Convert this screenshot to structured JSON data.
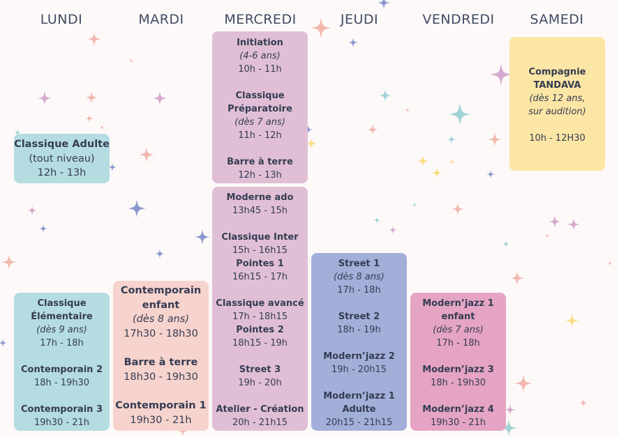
{
  "days": [
    "LUNDI",
    "MARDI",
    "MERCREDI",
    "JEUDI",
    "VENDREDI",
    "SAMEDI"
  ],
  "lundi_top": {
    "title": "Classique Adulte",
    "level": "(tout niveau)",
    "time": "12h - 13h"
  },
  "lundi_bottom": {
    "c1": {
      "title1": "Classique",
      "title2": "Élémentaire",
      "age": "(dès 9 ans)",
      "time": "17h - 18h"
    },
    "c2": {
      "title": "Contemporain 2",
      "time": "18h - 19h30"
    },
    "c3": {
      "title": "Contemporain 3",
      "time": "19h30 - 21h"
    }
  },
  "mardi": {
    "c1": {
      "title1": "Contemporain",
      "title2": "enfant",
      "age": "(dès 8 ans)",
      "time": "17h30 - 18h30"
    },
    "c2": {
      "title": "Barre à terre",
      "time": "18h30 - 19h30"
    },
    "c3": {
      "title": "Contemporain 1",
      "time": "19h30 - 21h"
    }
  },
  "mercredi_top": {
    "c1": {
      "title": "Initiation",
      "age": "(4-6 ans)",
      "time": "10h - 11h"
    },
    "c2": {
      "title1": "Classique",
      "title2": "Préparatoire",
      "age": "(dès 7 ans)",
      "time": "11h - 12h"
    },
    "c3": {
      "title": "Barre à terre",
      "time": "12h - 13h"
    }
  },
  "mercredi_bottom": {
    "c1": {
      "title": "Moderne ado",
      "time": "13h45 - 15h"
    },
    "c2": {
      "title": "Classique Inter",
      "time": "15h - 16h15"
    },
    "c3": {
      "title": "Pointes 1",
      "time": "16h15 - 17h"
    },
    "c4": {
      "title": "Classique avancé",
      "time": "17h - 18h15"
    },
    "c5": {
      "title": "Pointes 2",
      "time": "18h15 - 19h"
    },
    "c6": {
      "title": "Street 3",
      "time": "19h - 20h"
    },
    "c7": {
      "title": "Atelier - Création",
      "time": "20h - 21h15"
    }
  },
  "jeudi": {
    "c1": {
      "title": "Street 1",
      "age": "(dès 8 ans)",
      "time": "17h - 18h"
    },
    "c2": {
      "title": "Street 2",
      "time": "18h - 19h"
    },
    "c3": {
      "title": "Modern’jazz 2",
      "time": "19h - 20h15"
    },
    "c4": {
      "title1": "Modern’jazz 1",
      "title2": "Adulte",
      "time": "20h15 - 21h15"
    }
  },
  "vendredi": {
    "c1": {
      "title1": "Modern’jazz 1",
      "title2": "enfant",
      "age": "(dès 7 ans)",
      "time": "17h - 18h"
    },
    "c2": {
      "title": "Modern’jazz 3",
      "time": "18h - 19h30"
    },
    "c3": {
      "title": "Modern’jazz 4",
      "time": "19h30 - 21h"
    }
  },
  "samedi": {
    "title1": "Compagnie",
    "title2": "TANDAVA",
    "age1": "(dès 12 ans,",
    "age2": "sur audition)",
    "time": "10h - 12H30"
  },
  "colors": {
    "teal": "#b5dce0",
    "pink": "#f6d3cd",
    "mauve": "#e0bfd6",
    "blue": "#a2afd9",
    "rose": "#e5a4c3",
    "yellow": "#fbe6a5",
    "star_pink": "#f2b8b0",
    "star_teal": "#9fd3d6",
    "star_lilac": "#d6a9cf",
    "star_blue": "#8a98d1",
    "star_yellow": "#f9dd8a"
  }
}
